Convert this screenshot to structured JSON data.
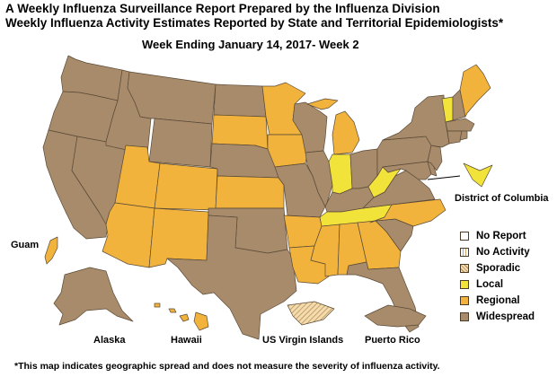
{
  "title_line1": "A Weekly Influenza Surveillance Report Prepared by the Influenza Division",
  "title_line2": "Weekly Influenza Activity Estimates Reported by State and Territorial Epidemiologists*",
  "week_label": "Week Ending January 14, 2017- Week 2",
  "footnote": "*This map indicates geographic spread and does not measure the severity of influenza activity.",
  "colors": {
    "no_report": "#ffffff",
    "local": "#f2e33b",
    "regional": "#f1b33c",
    "widespread": "#a88b6b",
    "border": "#5a4a36"
  },
  "legend": [
    {
      "label": "No Report",
      "level": "no_report"
    },
    {
      "label": "No Activity",
      "level": "no_activity"
    },
    {
      "label": "Sporadic",
      "level": "sporadic"
    },
    {
      "label": "Local",
      "level": "local"
    },
    {
      "label": "Regional",
      "level": "regional"
    },
    {
      "label": "Widespread",
      "level": "widespread"
    }
  ],
  "labels": {
    "guam": "Guam",
    "alaska": "Alaska",
    "hawaii": "Hawaii",
    "usvi": "US Virgin Islands",
    "pr": "Puerto Rico",
    "dc": "District of Columbia"
  },
  "regions": [
    {
      "id": "WA",
      "level": "widespread"
    },
    {
      "id": "OR",
      "level": "widespread"
    },
    {
      "id": "CA",
      "level": "widespread"
    },
    {
      "id": "NV",
      "level": "widespread"
    },
    {
      "id": "ID",
      "level": "widespread"
    },
    {
      "id": "MT",
      "level": "widespread"
    },
    {
      "id": "WY",
      "level": "widespread"
    },
    {
      "id": "UT",
      "level": "regional"
    },
    {
      "id": "AZ",
      "level": "regional"
    },
    {
      "id": "CO",
      "level": "regional"
    },
    {
      "id": "NM",
      "level": "regional"
    },
    {
      "id": "ND",
      "level": "widespread"
    },
    {
      "id": "SD",
      "level": "regional"
    },
    {
      "id": "NE",
      "level": "widespread"
    },
    {
      "id": "KS",
      "level": "regional"
    },
    {
      "id": "OK",
      "level": "widespread"
    },
    {
      "id": "TX",
      "level": "widespread"
    },
    {
      "id": "MN",
      "level": "regional"
    },
    {
      "id": "IA",
      "level": "regional"
    },
    {
      "id": "MO",
      "level": "widespread"
    },
    {
      "id": "AR",
      "level": "regional"
    },
    {
      "id": "LA",
      "level": "regional"
    },
    {
      "id": "WI",
      "level": "widespread"
    },
    {
      "id": "IL",
      "level": "widespread"
    },
    {
      "id": "MI",
      "level": "regional"
    },
    {
      "id": "IN",
      "level": "local"
    },
    {
      "id": "OH",
      "level": "widespread"
    },
    {
      "id": "KY",
      "level": "widespread"
    },
    {
      "id": "TN",
      "level": "local"
    },
    {
      "id": "MS",
      "level": "regional"
    },
    {
      "id": "AL",
      "level": "regional"
    },
    {
      "id": "GA",
      "level": "regional"
    },
    {
      "id": "FL",
      "level": "widespread"
    },
    {
      "id": "SC",
      "level": "widespread"
    },
    {
      "id": "NC",
      "level": "regional"
    },
    {
      "id": "VA",
      "level": "widespread"
    },
    {
      "id": "WV",
      "level": "local"
    },
    {
      "id": "PA",
      "level": "widespread"
    },
    {
      "id": "NY",
      "level": "widespread"
    },
    {
      "id": "MD",
      "level": "widespread"
    },
    {
      "id": "DE",
      "level": "widespread"
    },
    {
      "id": "NJ",
      "level": "widespread"
    },
    {
      "id": "CT",
      "level": "widespread"
    },
    {
      "id": "RI",
      "level": "widespread"
    },
    {
      "id": "MA",
      "level": "widespread"
    },
    {
      "id": "VT",
      "level": "local"
    },
    {
      "id": "NH",
      "level": "widespread"
    },
    {
      "id": "ME",
      "level": "regional"
    },
    {
      "id": "DC",
      "level": "local"
    },
    {
      "id": "AK",
      "level": "widespread"
    },
    {
      "id": "HI",
      "level": "regional"
    },
    {
      "id": "GU",
      "level": "regional"
    },
    {
      "id": "PR",
      "level": "widespread"
    },
    {
      "id": "VI",
      "level": "sporadic"
    }
  ]
}
